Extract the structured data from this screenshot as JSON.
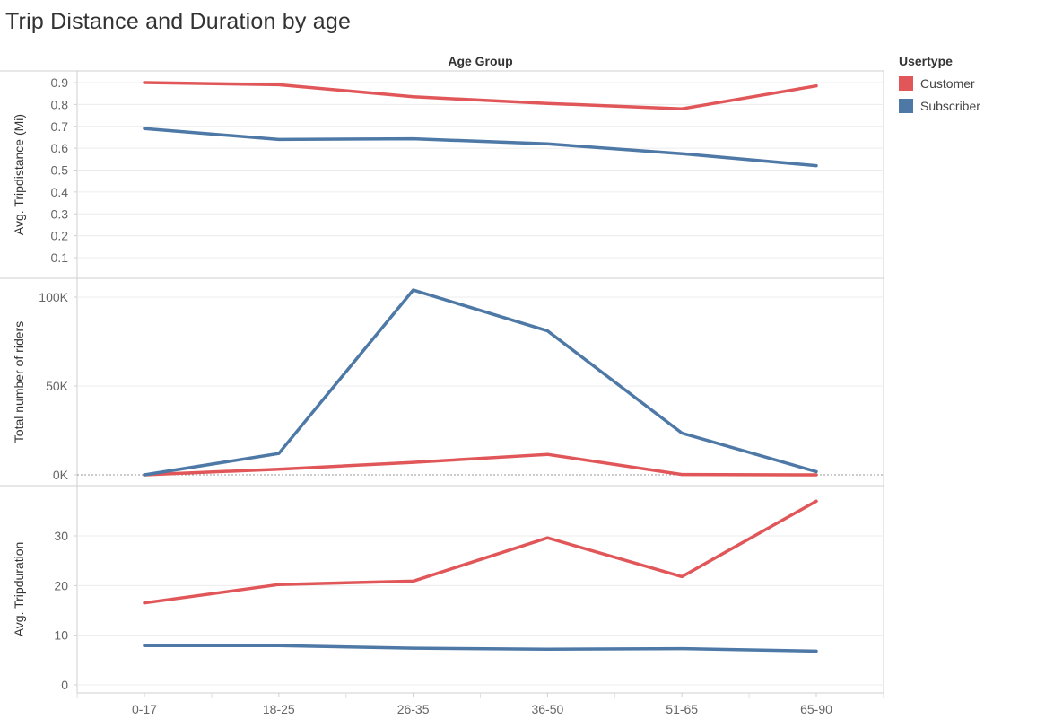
{
  "title": "Trip Distance and Duration by age",
  "legend": {
    "title": "Usertype",
    "items": [
      {
        "label": "Customer",
        "color": "#e15759"
      },
      {
        "label": "Subscriber",
        "color": "#4e79a7"
      }
    ]
  },
  "chart_data": {
    "type": "line",
    "xlabel": "Age Group",
    "categories": [
      "0-17",
      "18-25",
      "26-35",
      "36-50",
      "51-65",
      "65-90"
    ],
    "panels": [
      {
        "ylabel": "Avg. Tripdistance (Mi)",
        "ylim": [
          0,
          0.95
        ],
        "ticks": [
          0.1,
          0.2,
          0.3,
          0.4,
          0.5,
          0.6,
          0.7,
          0.8,
          0.9
        ],
        "tick_labels": [
          "0.1",
          "0.2",
          "0.3",
          "0.4",
          "0.5",
          "0.6",
          "0.7",
          "0.8",
          "0.9"
        ],
        "series": [
          {
            "name": "Customer",
            "values": [
              0.9,
              0.89,
              0.835,
              0.805,
              0.78,
              0.885
            ]
          },
          {
            "name": "Subscriber",
            "values": [
              0.69,
              0.64,
              0.643,
              0.62,
              0.575,
              0.52
            ]
          }
        ]
      },
      {
        "ylabel": "Total number of riders",
        "ylim": [
          0,
          110000
        ],
        "ticks": [
          0,
          50000,
          100000
        ],
        "tick_labels": [
          "0K",
          "50K",
          "100K"
        ],
        "zero_line": true,
        "series": [
          {
            "name": "Customer",
            "values": [
              0,
              3200,
              7000,
              11500,
              200,
              0
            ]
          },
          {
            "name": "Subscriber",
            "values": [
              0,
              12000,
              104000,
              81000,
              23500,
              1800
            ]
          }
        ]
      },
      {
        "ylabel": "Avg. Tripduration",
        "ylim": [
          0,
          40
        ],
        "ticks": [
          0,
          10,
          20,
          30
        ],
        "tick_labels": [
          "0",
          "10",
          "20",
          "30"
        ],
        "series": [
          {
            "name": "Customer",
            "values": [
              16.5,
              20.2,
              20.9,
              29.6,
              21.8,
              37
            ]
          },
          {
            "name": "Subscriber",
            "values": [
              7.9,
              7.9,
              7.4,
              7.2,
              7.3,
              6.8
            ]
          }
        ]
      }
    ]
  }
}
